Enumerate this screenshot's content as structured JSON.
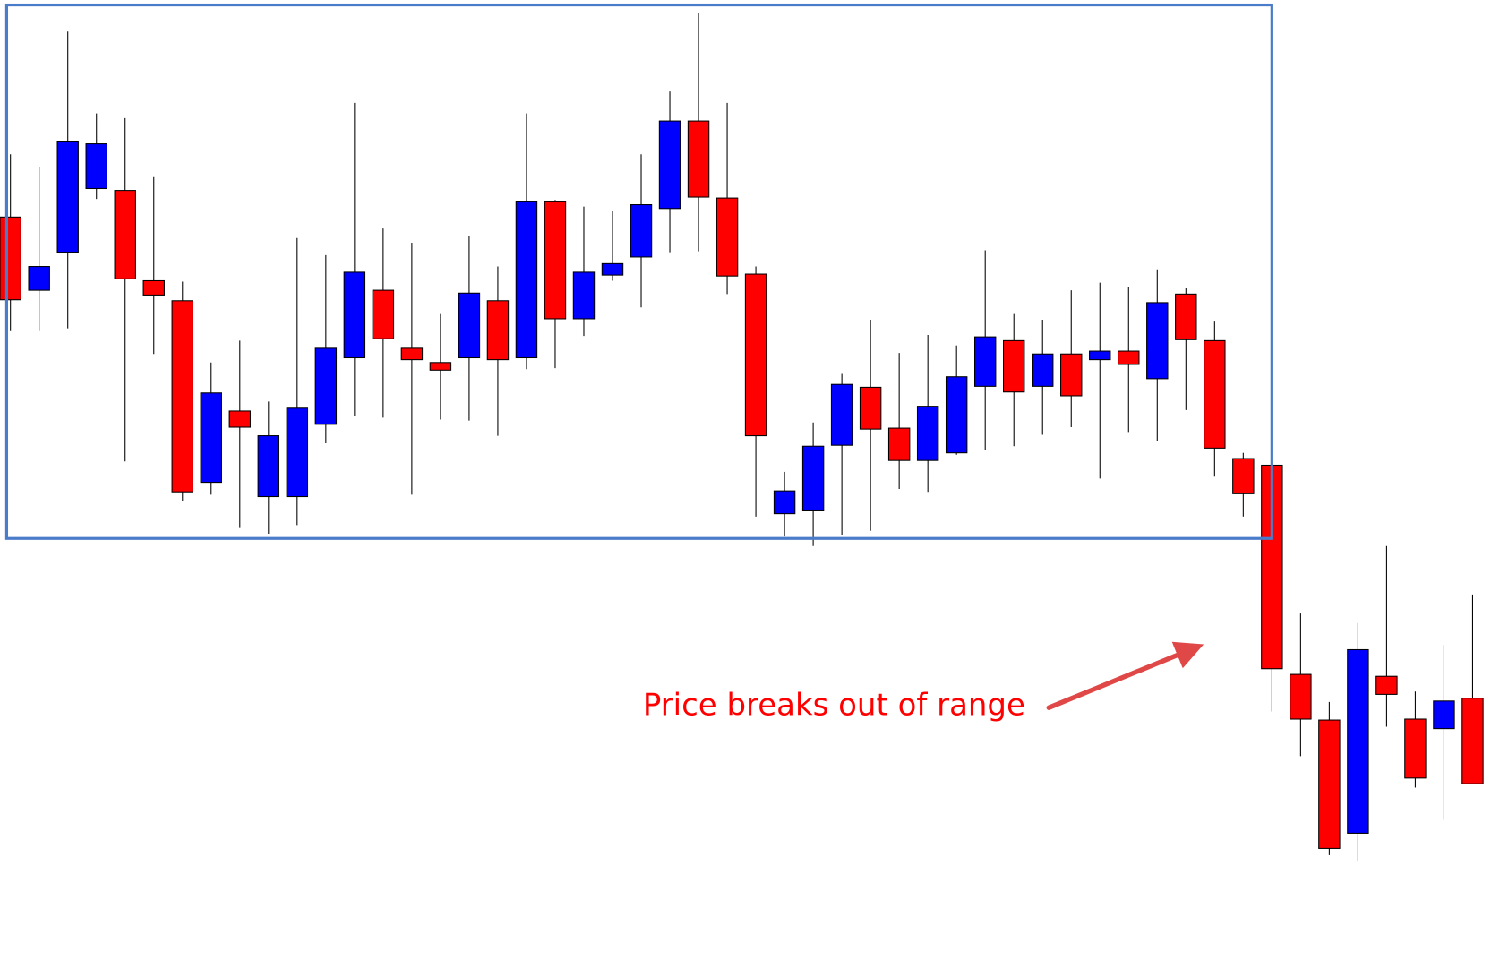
{
  "chart_data": {
    "type": "candlestick",
    "annotation": "Price breaks out of range",
    "up_color": "#0000ff",
    "down_color": "#ff0000",
    "range": [
      461,
      1022
    ],
    "range_color": "#4a7cc9",
    "ylim": [
      0,
      1027
    ],
    "open": [
      799,
      722,
      762,
      829,
      827,
      732,
      711,
      520,
      595,
      505,
      505,
      581,
      651,
      722,
      661,
      646,
      651,
      711,
      651,
      815,
      692,
      738,
      757,
      808,
      900,
      819,
      739,
      487,
      490,
      559,
      620,
      577,
      543,
      551,
      621,
      669,
      621,
      655,
      649,
      658,
      629,
      718,
      669,
      545,
      538,
      318,
      270,
      151,
      316,
      271,
      261,
      293
    ],
    "high": [
      865,
      852,
      994,
      908,
      903,
      841,
      731,
      646,
      669,
      605,
      777,
      759,
      919,
      787,
      772,
      697,
      779,
      747,
      908,
      817,
      810,
      805,
      865,
      931,
      1014,
      919,
      747,
      531,
      583,
      634,
      691,
      656,
      675,
      664,
      764,
      697,
      691,
      722,
      730,
      725,
      744,
      724,
      689,
      551,
      538,
      382,
      289,
      372,
      453,
      300,
      349,
      402
    ],
    "low": [
      679,
      679,
      682,
      818,
      542,
      655,
      500,
      507,
      472,
      466,
      475,
      561,
      590,
      588,
      507,
      586,
      585,
      569,
      639,
      640,
      674,
      732,
      704,
      762,
      763,
      718,
      484,
      463,
      453,
      465,
      469,
      513,
      510,
      549,
      554,
      558,
      570,
      578,
      524,
      573,
      563,
      596,
      526,
      484,
      279,
      232,
      128,
      122,
      263,
      199,
      165,
      203
    ],
    "close": [
      712,
      747,
      878,
      876,
      734,
      717,
      510,
      614,
      578,
      569,
      598,
      661,
      741,
      671,
      649,
      638,
      719,
      649,
      815,
      692,
      741,
      750,
      812,
      900,
      820,
      737,
      569,
      511,
      558,
      623,
      576,
      543,
      600,
      631,
      673,
      615,
      655,
      611,
      658,
      644,
      709,
      670,
      556,
      508,
      324,
      271,
      135,
      344,
      297,
      209,
      290,
      203
    ]
  }
}
